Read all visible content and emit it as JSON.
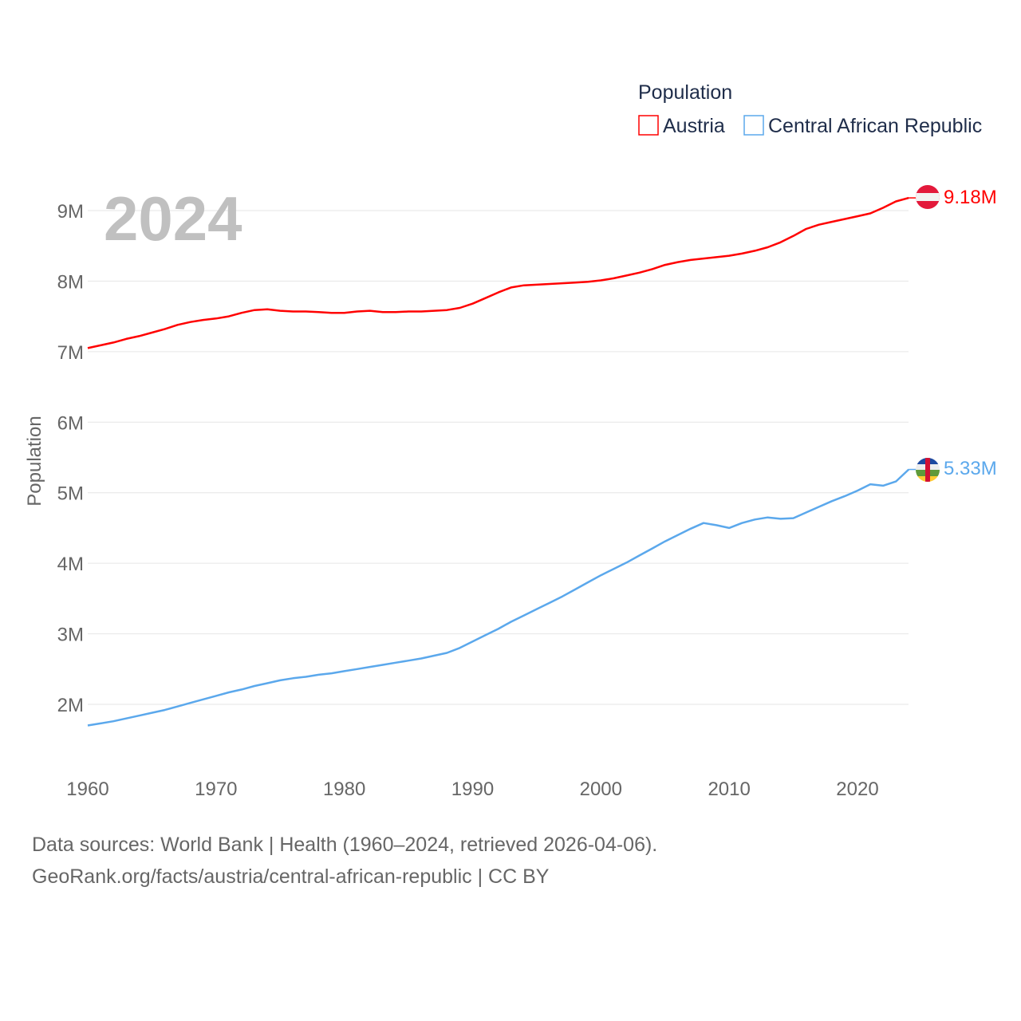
{
  "chart_data": {
    "type": "line",
    "title": "",
    "xlabel": "",
    "ylabel": "Population",
    "year_label": "2024",
    "xlim": [
      1960,
      2024
    ],
    "ylim": [
      1.4,
      9.4
    ],
    "x_ticks": [
      1960,
      1970,
      1980,
      1990,
      2000,
      2010,
      2020
    ],
    "y_ticks": [
      2,
      3,
      4,
      5,
      6,
      7,
      8,
      9
    ],
    "y_tick_labels": [
      "2M",
      "3M",
      "4M",
      "5M",
      "6M",
      "7M",
      "8M",
      "9M"
    ],
    "grid": true,
    "legend": {
      "title": "Population",
      "placement": "top-right"
    },
    "series": [
      {
        "name": "Austria",
        "color": "#ff0000",
        "end_label": "9.18M",
        "unit": "millions",
        "values": [
          7.05,
          7.09,
          7.13,
          7.18,
          7.22,
          7.27,
          7.32,
          7.38,
          7.42,
          7.45,
          7.47,
          7.5,
          7.55,
          7.59,
          7.6,
          7.58,
          7.57,
          7.57,
          7.56,
          7.55,
          7.55,
          7.57,
          7.58,
          7.56,
          7.56,
          7.57,
          7.57,
          7.58,
          7.59,
          7.62,
          7.68,
          7.76,
          7.84,
          7.91,
          7.94,
          7.95,
          7.96,
          7.97,
          7.98,
          7.99,
          8.01,
          8.04,
          8.08,
          8.12,
          8.17,
          8.23,
          8.27,
          8.3,
          8.32,
          8.34,
          8.36,
          8.39,
          8.43,
          8.48,
          8.55,
          8.64,
          8.74,
          8.8,
          8.84,
          8.88,
          8.92,
          8.96,
          9.04,
          9.13,
          9.18
        ]
      },
      {
        "name": "Central African Republic",
        "color": "#5ba8ec",
        "end_label": "5.33M",
        "unit": "millions",
        "values": [
          1.7,
          1.73,
          1.76,
          1.8,
          1.84,
          1.88,
          1.92,
          1.97,
          2.02,
          2.07,
          2.12,
          2.17,
          2.21,
          2.26,
          2.3,
          2.34,
          2.37,
          2.39,
          2.42,
          2.44,
          2.47,
          2.5,
          2.53,
          2.56,
          2.59,
          2.62,
          2.65,
          2.69,
          2.73,
          2.8,
          2.89,
          2.98,
          3.07,
          3.17,
          3.26,
          3.35,
          3.44,
          3.53,
          3.63,
          3.73,
          3.83,
          3.92,
          4.01,
          4.11,
          4.21,
          4.31,
          4.4,
          4.49,
          4.57,
          4.54,
          4.5,
          4.57,
          4.62,
          4.65,
          4.63,
          4.64,
          4.72,
          4.8,
          4.88,
          4.95,
          5.03,
          5.12,
          5.1,
          5.16,
          5.33
        ]
      }
    ]
  },
  "footer": {
    "line1": "Data sources: World Bank | Health (1960–2024, retrieved 2026-04-06).",
    "line2": "GeoRank.org/facts/austria/central-african-republic | CC BY"
  }
}
